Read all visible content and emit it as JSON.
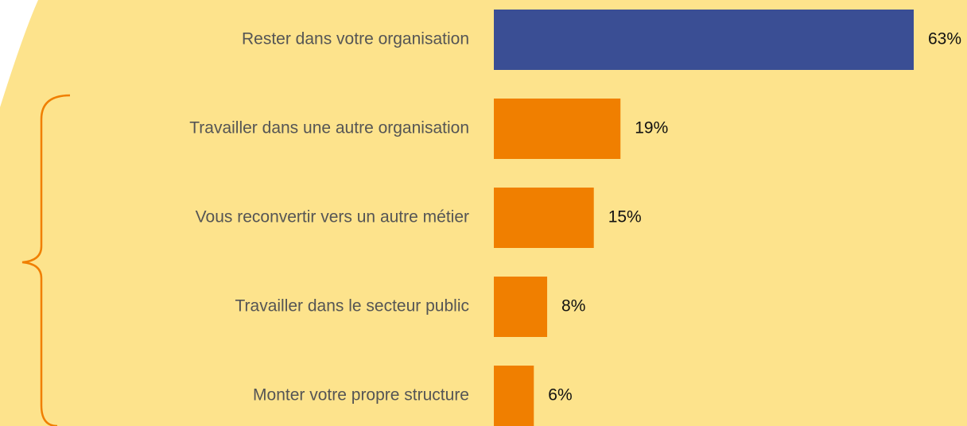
{
  "chart_data": {
    "type": "bar",
    "orientation": "horizontal",
    "categories": [
      "Rester dans votre organisation",
      "Travailler dans une autre organisation",
      "Vous reconvertir vers un autre métier",
      "Travailler dans le secteur public",
      "Monter votre propre structure"
    ],
    "values": [
      63,
      19,
      15,
      8,
      6
    ],
    "value_labels": [
      "63%",
      "19%",
      "15%",
      "8%",
      "6%"
    ],
    "colors": [
      "#3a4e94",
      "#f07f00",
      "#f07f00",
      "#f07f00",
      "#f07f00"
    ]
  }
}
